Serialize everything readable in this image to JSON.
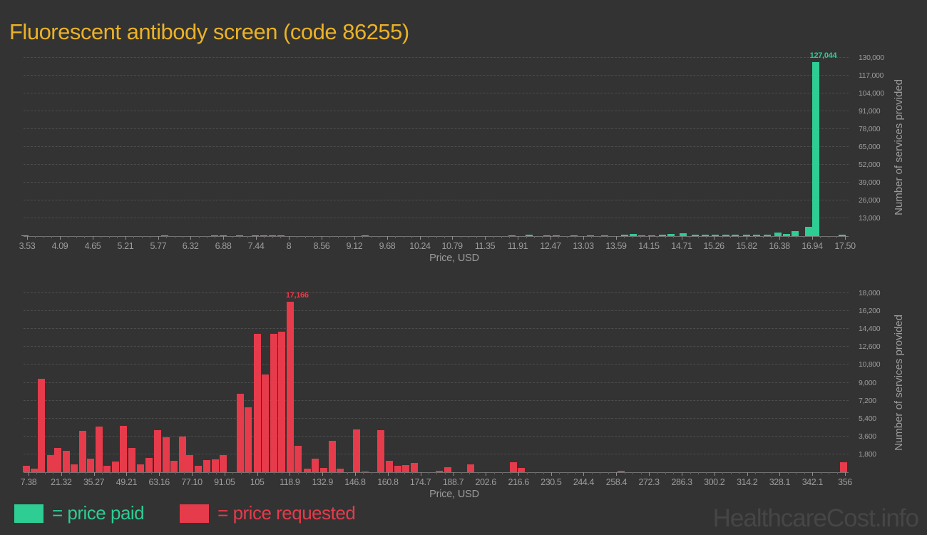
{
  "title": "Fluorescent antibody screen (code 86255)",
  "watermark": "HealthcareCost.info",
  "legend": {
    "position": "bottom-left",
    "paid_label": "= price paid",
    "requested_label": "= price requested"
  },
  "colors": {
    "background": "#333333",
    "title": "#eab225",
    "paid": "#2dcd93",
    "requested": "#e63b4b",
    "axis_text": "#9c9c9c",
    "gridline": "#4d4d4d",
    "watermark": "#464646"
  },
  "chart_data": [
    {
      "type": "bar",
      "series_name": "price paid",
      "xlabel": "Price, USD",
      "ylabel": "Number of services provided",
      "grid": "dashed-horizontal",
      "xlim": [
        3.53,
        17.5
      ],
      "ylim": [
        0,
        130000
      ],
      "x_ticks": [
        "3.53",
        "4.09",
        "4.65",
        "5.21",
        "5.77",
        "6.32",
        "6.88",
        "7.44",
        "8",
        "8.56",
        "9.12",
        "9.68",
        "10.24",
        "10.79",
        "11.35",
        "11.91",
        "12.47",
        "13.03",
        "13.59",
        "14.15",
        "14.71",
        "15.26",
        "15.82",
        "16.38",
        "16.94",
        "17.50"
      ],
      "y_ticks": [
        "13,000",
        "26,000",
        "39,000",
        "52,000",
        "65,000",
        "78,000",
        "91,000",
        "104,000",
        "117,000",
        "130,000"
      ],
      "peak_annotation": {
        "label": "127,044",
        "x": 17.0,
        "value": 127044
      },
      "bars": [
        [
          3.49,
          700
        ],
        [
          5.88,
          500
        ],
        [
          6.73,
          600
        ],
        [
          6.88,
          500
        ],
        [
          7.16,
          500
        ],
        [
          7.43,
          600
        ],
        [
          7.57,
          600
        ],
        [
          7.72,
          600
        ],
        [
          7.86,
          600
        ],
        [
          9.3,
          400
        ],
        [
          11.81,
          600
        ],
        [
          12.1,
          1200
        ],
        [
          12.41,
          500
        ],
        [
          12.57,
          500
        ],
        [
          12.87,
          500
        ],
        [
          13.15,
          700
        ],
        [
          13.4,
          700
        ],
        [
          13.74,
          1000
        ],
        [
          13.88,
          1400
        ],
        [
          14.03,
          800
        ],
        [
          14.2,
          800
        ],
        [
          14.38,
          1300
        ],
        [
          14.53,
          1500
        ],
        [
          14.73,
          2100
        ],
        [
          14.94,
          1200
        ],
        [
          15.11,
          1200
        ],
        [
          15.28,
          1200
        ],
        [
          15.46,
          900
        ],
        [
          15.63,
          1300
        ],
        [
          15.82,
          1100
        ],
        [
          15.99,
          900
        ],
        [
          16.17,
          900
        ],
        [
          16.35,
          2600
        ],
        [
          16.5,
          1500
        ],
        [
          16.65,
          3600
        ],
        [
          16.88,
          6700
        ],
        [
          17.0,
          127044
        ],
        [
          17.45,
          1000
        ]
      ]
    },
    {
      "type": "bar",
      "series_name": "price requested",
      "xlabel": "Price, USD",
      "ylabel": "Number of services provided",
      "grid": "dashed-horizontal",
      "xlim": [
        7.38,
        356
      ],
      "ylim": [
        0,
        18000
      ],
      "x_ticks": [
        "7.38",
        "21.32",
        "35.27",
        "49.21",
        "63.16",
        "77.10",
        "91.05",
        "105",
        "118.9",
        "132.9",
        "146.8",
        "160.8",
        "174.7",
        "188.7",
        "202.6",
        "216.6",
        "230.5",
        "244.4",
        "258.4",
        "272.3",
        "286.3",
        "300.2",
        "314.2",
        "328.1",
        "342.1",
        "356"
      ],
      "y_ticks": [
        "1,800",
        "3,600",
        "5,400",
        "7,200",
        "9,000",
        "10,800",
        "12,600",
        "14,400",
        "16,200",
        "18,000"
      ],
      "peak_annotation": {
        "label": "17,166",
        "x": 119.1,
        "value": 17166
      },
      "bars": [
        [
          6.5,
          650
        ],
        [
          9.7,
          350
        ],
        [
          13.0,
          9400
        ],
        [
          16.8,
          1750
        ],
        [
          20.0,
          2450
        ],
        [
          23.5,
          2170
        ],
        [
          26.9,
          770
        ],
        [
          30.5,
          4130
        ],
        [
          34.0,
          1400
        ],
        [
          37.5,
          4620
        ],
        [
          40.9,
          630
        ],
        [
          44.5,
          1050
        ],
        [
          47.9,
          4690
        ],
        [
          51.5,
          2450
        ],
        [
          55.2,
          770
        ],
        [
          58.7,
          1470
        ],
        [
          62.5,
          4270
        ],
        [
          66.0,
          3500
        ],
        [
          69.5,
          1120
        ],
        [
          73.1,
          3570
        ],
        [
          76.3,
          1750
        ],
        [
          79.7,
          630
        ],
        [
          83.5,
          1190
        ],
        [
          87.0,
          1260
        ],
        [
          90.6,
          1750
        ],
        [
          97.7,
          7900
        ],
        [
          101.2,
          6520
        ],
        [
          105.0,
          13900
        ],
        [
          108.5,
          9820
        ],
        [
          112.0,
          13900
        ],
        [
          115.6,
          14100
        ],
        [
          119.1,
          17166
        ],
        [
          122.6,
          2650
        ],
        [
          126.3,
          360
        ],
        [
          129.8,
          1360
        ],
        [
          133.3,
          430
        ],
        [
          137.0,
          3150
        ],
        [
          140.5,
          360
        ],
        [
          147.3,
          4300
        ],
        [
          151.0,
          80
        ],
        [
          157.7,
          4230
        ],
        [
          161.3,
          1150
        ],
        [
          165.0,
          645
        ],
        [
          168.3,
          720
        ],
        [
          172.0,
          930
        ],
        [
          182.8,
          140
        ],
        [
          186.3,
          500
        ],
        [
          196.2,
          800
        ],
        [
          214.4,
          1000
        ],
        [
          217.8,
          400
        ],
        [
          260.4,
          150
        ],
        [
          355.4,
          1000
        ]
      ]
    }
  ]
}
